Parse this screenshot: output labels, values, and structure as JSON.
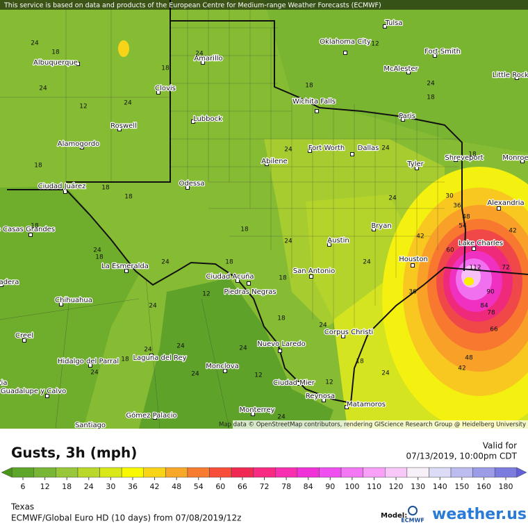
{
  "map": {
    "notice": "This service is based on data and products of the European Centre for Medium-range Weather Forecasts (ECMWF)",
    "attribution": "Map data © OpenStreetMap contributors, rendering GIScience Research Group @ Heidelberg University",
    "cities": [
      "Tulsa",
      "Oklahoma City",
      "Fort Smith",
      "Albuquerque",
      "Amarillo",
      "McAlester",
      "Little Rock",
      "Clovis",
      "Wichita Falls",
      "Paris",
      "Lubbock",
      "Roswell",
      "Alamogordo",
      "Fort Worth",
      "Dallas",
      "Shreveport",
      "Monroe",
      "Abilene",
      "Tyler",
      "Odessa",
      "Ciudad Juárez",
      "Alexandria",
      "Nuevo Casas Grandes",
      "Bryan",
      "Austin",
      "Lake Charles",
      "Houston",
      "La Esmeralda",
      "San Antonio",
      "Ciudad Acuña",
      "Piedras Negras",
      "adera",
      "Chihuahua",
      "Creel",
      "Corpus Christi",
      "Nuevo Laredo",
      "Hidalgo del Parral",
      "Laguna del Rey",
      "Monclova",
      "Ciudad Mier",
      "Guadalupe y Calvo",
      "Reynosa",
      "Matamoros",
      "Gómez Palacio",
      "Monterrey",
      "Santiago",
      "ia"
    ],
    "contour_labels": [
      24,
      18,
      24,
      18,
      24,
      18,
      12,
      18,
      24,
      24,
      12,
      18,
      18,
      18,
      18,
      24,
      18,
      24,
      18,
      18,
      24,
      24,
      24,
      24,
      18,
      30,
      36,
      48,
      54,
      42,
      60,
      42,
      112,
      72,
      90,
      84,
      78,
      66,
      48,
      42,
      36,
      24,
      24,
      18,
      18,
      24,
      18,
      12,
      24,
      24,
      24,
      24,
      18,
      24,
      12,
      24,
      12,
      24
    ]
  },
  "legend": {
    "title": "Gusts, 3h (mph)",
    "ticks": [
      6,
      12,
      18,
      24,
      30,
      36,
      42,
      48,
      54,
      60,
      66,
      72,
      78,
      84,
      90,
      100,
      110,
      120,
      130,
      140,
      150,
      160,
      180
    ],
    "colors": [
      "#4a961c",
      "#5ea62a",
      "#7ab636",
      "#98c83a",
      "#b8d82a",
      "#d8e818",
      "#f8f800",
      "#f8d418",
      "#f8a828",
      "#f87c30",
      "#f84e3a",
      "#f02a52",
      "#f82a82",
      "#f830b0",
      "#f032d8",
      "#f050f0",
      "#f478f4",
      "#f8a0f8",
      "#f8c8f8",
      "#f8f0f8",
      "#dcdcf8",
      "#bcbcf0",
      "#9c9ce8",
      "#7c7ce0",
      "#6060d8"
    ]
  },
  "valid": {
    "label": "Valid for",
    "time": "07/13/2019, 10:00pm CDT"
  },
  "footer": {
    "region": "Texas",
    "model_run": "ECMWF/Global Euro HD (10 days) from 07/08/2019/12z",
    "model_label": "Model:",
    "model": "ECMWF",
    "brand": "weather.us"
  }
}
